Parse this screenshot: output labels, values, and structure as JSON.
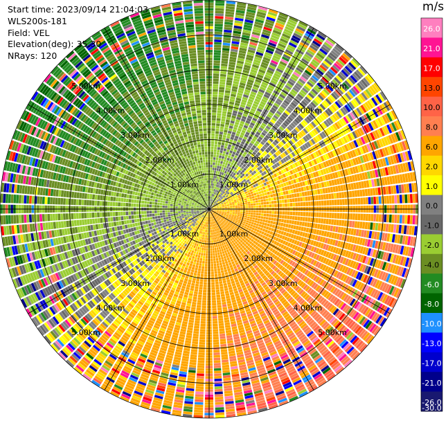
{
  "chart_data": {
    "type": "heatmap",
    "subtype": "polar-ppi",
    "header": {
      "start_time": "Start time: 2023/09/14 21:04:03",
      "instrument": "WLS200s-181",
      "field": "Field: VEL",
      "elevation": "Elevation(deg): 35.30",
      "nrays": "NRays: 120"
    },
    "range_rings_km": [
      1.0,
      2.0,
      3.0,
      4.0,
      5.0
    ],
    "range_ring_labels": [
      "1.00km",
      "2.00km",
      "3.00km",
      "4.00km",
      "5.00km"
    ],
    "max_range_km": 6.0,
    "num_rays": 120,
    "gate_spacing_km": 0.075,
    "dominant_pattern": "positive velocities (yellow-orange-red) toward east and south, negative velocities (green) toward north and west",
    "colorbar": {
      "unit": "m/s",
      "tick_labels": [
        "26.0",
        "21.0",
        "17.0",
        "13.0",
        "10.0",
        "8.0",
        "6.0",
        "2.0",
        "1.0",
        "0.0",
        "-1.0",
        "-2.0",
        "-4.0",
        "-6.0",
        "-8.0",
        "-10.0",
        "-13.0",
        "-17.0",
        "-21.0",
        "-26.0",
        "-30.0"
      ],
      "colors": [
        "#ff7fbf",
        "#ff1493",
        "#ff0000",
        "#ff4500",
        "#ff6347",
        "#ff7f50",
        "#ffa500",
        "#ffd700",
        "#ffff00",
        "#808080",
        "#696969",
        "#9acd32",
        "#6b8e23",
        "#228b22",
        "#006400",
        "#1e90ff",
        "#0000ff",
        "#0000cd",
        "#00008b",
        "#191970"
      ]
    }
  }
}
